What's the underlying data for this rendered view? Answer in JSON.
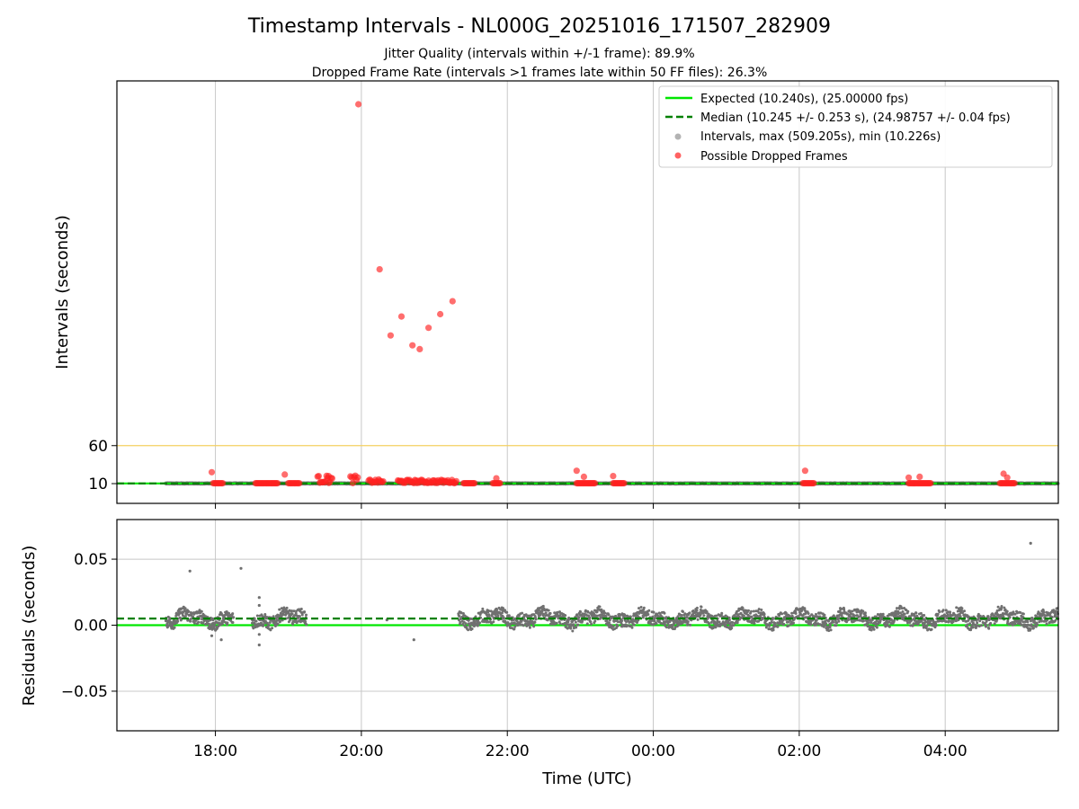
{
  "title": "Timestamp Intervals - NL000G_20251016_171507_282909",
  "subtitle_jitter": "Jitter Quality (intervals within +/-1 frame): 89.9%",
  "subtitle_dropped": "Dropped Frame Rate (intervals >1 frames late within 50 FF files): 26.3%",
  "colors": {
    "expected": "#00e600",
    "median": "#008000",
    "intervals": "#707070",
    "dropped": "#ff2020",
    "threshold": "#f5d060",
    "grid": "#c8c8c8"
  },
  "chart_data": [
    {
      "type": "scatter",
      "name": "intervals",
      "ylabel": "Intervals (seconds)",
      "xlabel": "",
      "x_range_hours": [
        16.65,
        29.55
      ],
      "ylim": [
        -16,
        540
      ],
      "yticks": [
        10,
        60
      ],
      "ytick_labels": [
        "10",
        "60"
      ],
      "grid": "x-only",
      "threshold_line": 60,
      "expected": 10.24,
      "median": 10.245,
      "legend": {
        "position": "top-right",
        "entries": [
          "Expected (10.240s), (25.00000 fps)",
          "Median (10.245 +/- 0.253 s), (24.98757 +/- 0.04 fps)",
          "Intervals, max (509.205s), min (10.226s)",
          "Possible Dropped Frames"
        ]
      },
      "dropped_clusters": [
        [
          17.97,
          18.1,
          10.5
        ],
        [
          18.55,
          18.85,
          10.5
        ],
        [
          19.0,
          19.15,
          10.5
        ],
        [
          19.4,
          19.6,
          20.5
        ],
        [
          19.85,
          19.95,
          20.5
        ],
        [
          20.1,
          20.3,
          15.5
        ],
        [
          20.5,
          21.3,
          15.0
        ],
        [
          21.4,
          21.55,
          10.5
        ],
        [
          21.8,
          21.9,
          10.5
        ],
        [
          22.95,
          23.2,
          10.5
        ],
        [
          23.45,
          23.6,
          10.5
        ],
        [
          26.05,
          26.2,
          10.5
        ],
        [
          27.5,
          27.8,
          10.5
        ],
        [
          28.75,
          28.95,
          10.5
        ]
      ],
      "dropped_outliers": [
        [
          17.95,
          25
        ],
        [
          18.95,
          22
        ],
        [
          19.55,
          20
        ],
        [
          19.96,
          509.2
        ],
        [
          20.25,
          292
        ],
        [
          20.4,
          205
        ],
        [
          20.55,
          230
        ],
        [
          20.7,
          192
        ],
        [
          20.8,
          187
        ],
        [
          20.92,
          215
        ],
        [
          21.08,
          233
        ],
        [
          21.25,
          250
        ],
        [
          21.85,
          17
        ],
        [
          22.95,
          27
        ],
        [
          23.05,
          19
        ],
        [
          23.45,
          20
        ],
        [
          26.08,
          27
        ],
        [
          27.5,
          18
        ],
        [
          27.65,
          19
        ],
        [
          28.8,
          23
        ],
        [
          28.85,
          18
        ]
      ]
    },
    {
      "type": "scatter",
      "name": "residuals",
      "ylabel": "Residuals (seconds)",
      "xlabel": "Time (UTC)",
      "x_range_hours": [
        16.65,
        29.55
      ],
      "ylim": [
        -0.08,
        0.08
      ],
      "yticks": [
        -0.05,
        0.0,
        0.05
      ],
      "ytick_labels": [
        "−0.05",
        "0.00",
        "0.05"
      ],
      "xticks_hours": [
        18,
        20,
        22,
        24,
        26,
        28
      ],
      "xtick_labels": [
        "18:00",
        "20:00",
        "22:00",
        "00:00",
        "02:00",
        "04:00"
      ],
      "grid": "both",
      "expected_residual": 0.0,
      "median_residual": 0.005,
      "segments": [
        [
          17.32,
          18.25
        ],
        [
          18.5,
          19.25
        ],
        [
          21.33,
          29.55
        ]
      ],
      "baseline": 0.005,
      "spread": 0.01,
      "outliers": [
        [
          17.65,
          0.041
        ],
        [
          18.35,
          0.043
        ],
        [
          18.6,
          0.021
        ],
        [
          18.6,
          0.015
        ],
        [
          29.17,
          0.062
        ],
        [
          20.72,
          -0.011
        ],
        [
          18.08,
          -0.011
        ],
        [
          17.95,
          -0.008
        ],
        [
          18.6,
          -0.015
        ],
        [
          18.6,
          -0.007
        ],
        [
          20.35,
          0.004
        ]
      ]
    }
  ]
}
